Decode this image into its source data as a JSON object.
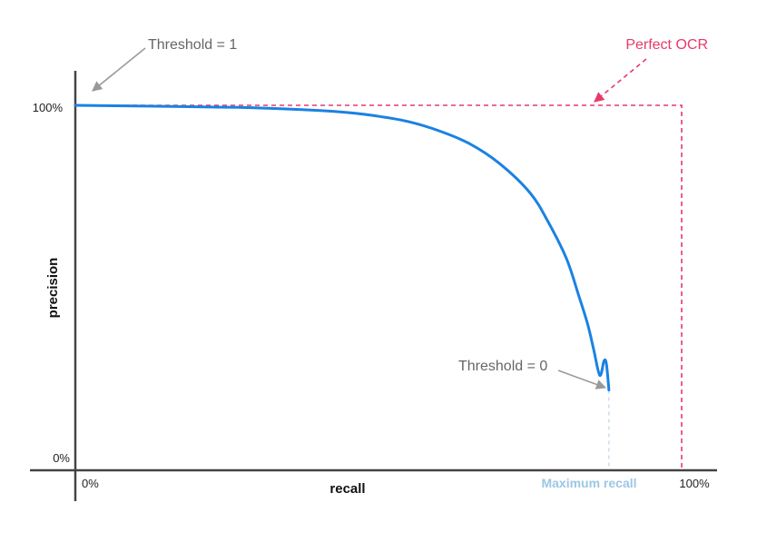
{
  "chart_data": {
    "type": "line",
    "xlabel": "recall",
    "ylabel": "precision",
    "xlim": [
      0,
      100
    ],
    "ylim": [
      0,
      100
    ],
    "x_ticks": [
      "0%",
      "100%"
    ],
    "y_ticks": [
      "0%",
      "100%"
    ],
    "grid": false,
    "series": [
      {
        "color": "#1a82e2",
        "x": [
          0,
          10,
          20,
          30,
          40,
          45,
          50,
          55,
          60,
          65,
          70,
          75,
          78,
          81,
          83,
          84.5,
          85.5,
          86.5,
          87.2,
          87.6,
          88
        ],
        "y": [
          100,
          99.8,
          99.6,
          99.3,
          98.6,
          98,
          97,
          95.5,
          93,
          89.5,
          84,
          76,
          68,
          58,
          48,
          40,
          33,
          26,
          30,
          29,
          22
        ]
      }
    ],
    "reference_lines": {
      "perfect_ocr": {
        "label": "Perfect OCR",
        "color": "#e8396b",
        "precision": 100,
        "recall": 100
      },
      "maximum_recall": {
        "label": "Maximum recall",
        "color": "#9cc7e4",
        "recall": 88
      }
    },
    "annotations": {
      "threshold_one": {
        "text": "Threshold = 1"
      },
      "threshold_zero": {
        "text": "Threshold = 0"
      }
    }
  }
}
